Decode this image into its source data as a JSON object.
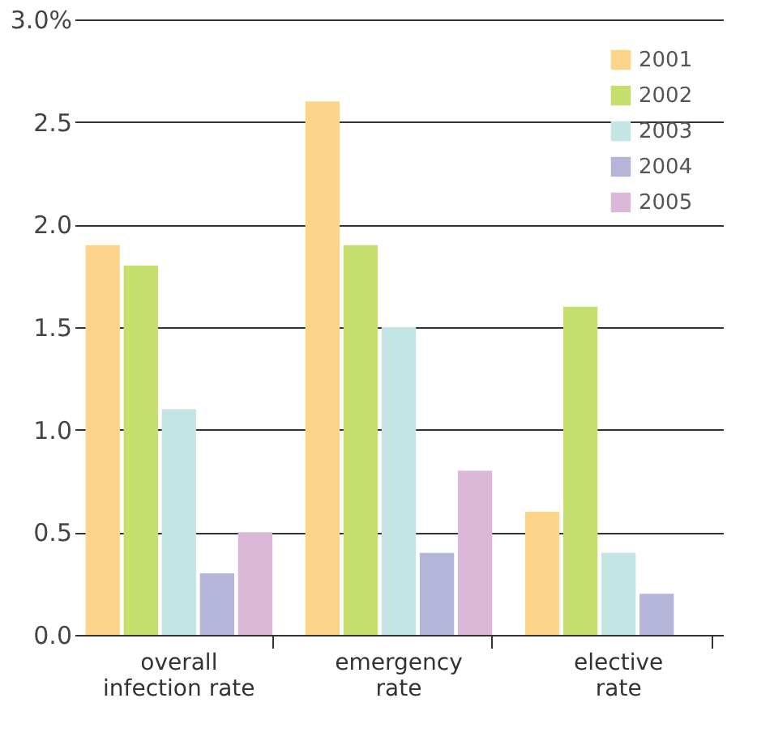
{
  "chart_data": {
    "type": "bar",
    "categories": [
      "overall infection rate",
      "emergency rate",
      "elective rate"
    ],
    "series": [
      {
        "name": "2001",
        "color": "#fdd58a",
        "values": [
          1.9,
          2.6,
          0.6
        ]
      },
      {
        "name": "2002",
        "color": "#c6de6e",
        "values": [
          1.8,
          1.9,
          1.6
        ]
      },
      {
        "name": "2003",
        "color": "#c3e6e4",
        "values": [
          1.1,
          1.5,
          0.4
        ]
      },
      {
        "name": "2004",
        "color": "#b5b5da",
        "values": [
          0.3,
          0.4,
          0.2
        ]
      },
      {
        "name": "2005",
        "color": "#dcb8d8",
        "values": [
          0.5,
          0.8,
          null
        ]
      }
    ],
    "ylim": [
      0,
      3
    ],
    "yticks": [
      {
        "value": 0,
        "label": "0.0"
      },
      {
        "value": 0.5,
        "label": "0.5"
      },
      {
        "value": 1,
        "label": "1.0"
      },
      {
        "value": 1.5,
        "label": "1.5"
      },
      {
        "value": 2,
        "label": "2.0"
      },
      {
        "value": 2.5,
        "label": "2.5"
      },
      {
        "value": 3,
        "label": "3.0%"
      }
    ],
    "grid": "y",
    "legend": "top right"
  }
}
